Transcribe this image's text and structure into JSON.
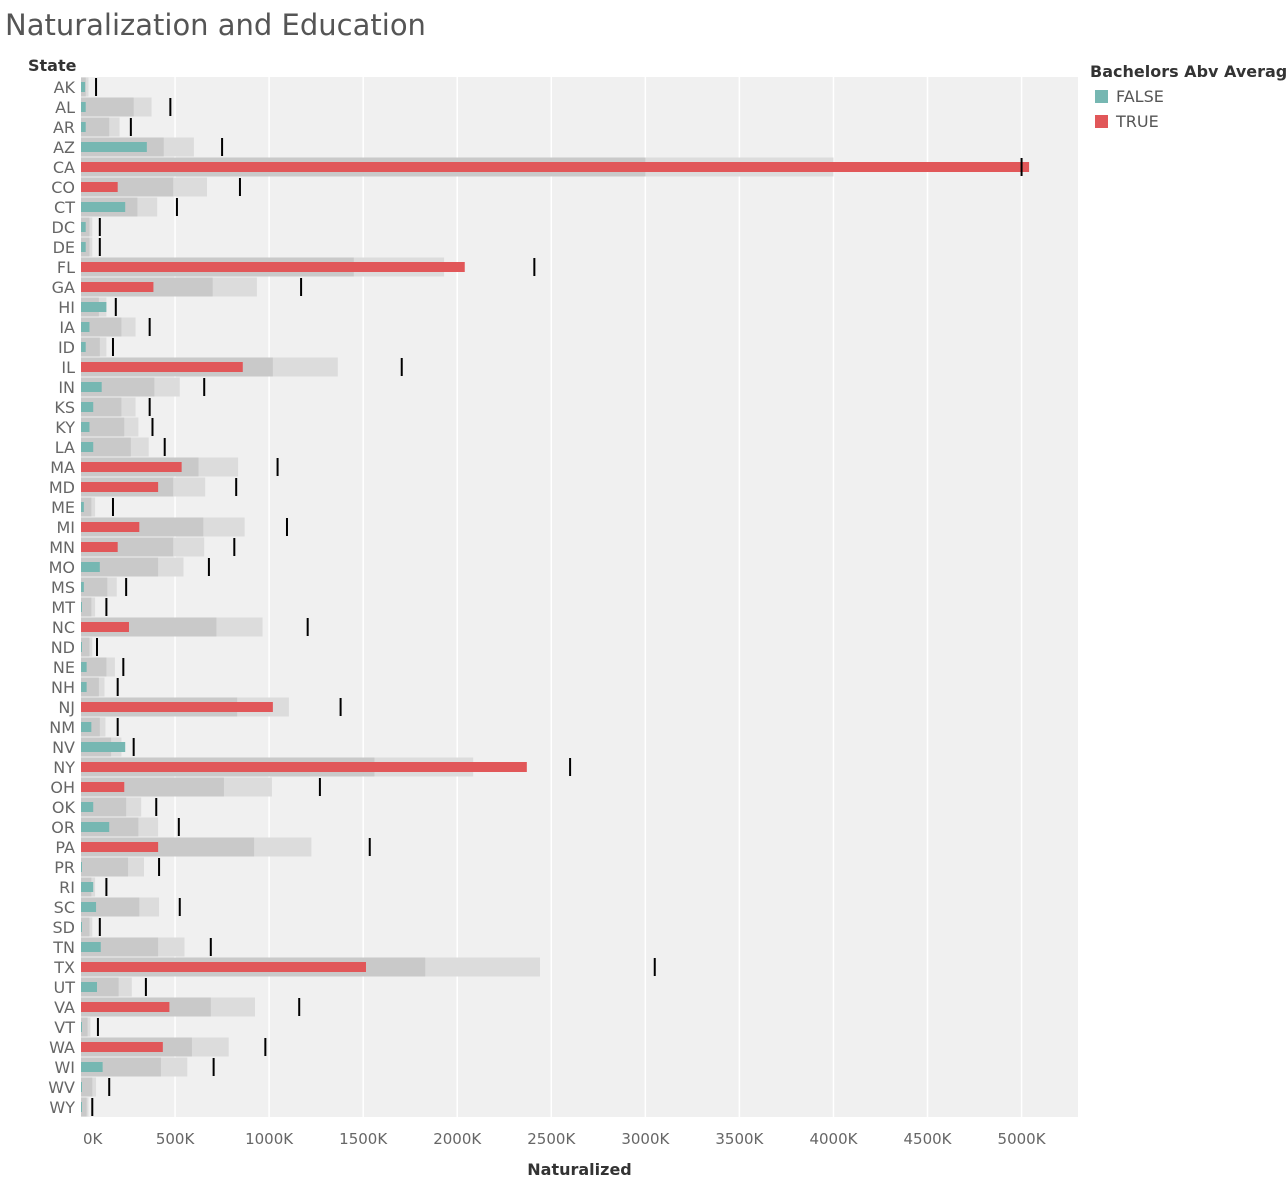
{
  "chart_data": {
    "type": "bar",
    "title": "Naturalization and Education",
    "row_header": "State",
    "xlabel": "Naturalized",
    "xlim": [
      0,
      5300000
    ],
    "x_ticks": [
      0,
      500000,
      1000000,
      1500000,
      2000000,
      2500000,
      3000000,
      3500000,
      4000000,
      4500000,
      5000000
    ],
    "x_tick_labels": [
      "0K",
      "500K",
      "1000K",
      "1500K",
      "2000K",
      "2500K",
      "3000K",
      "3500K",
      "4000K",
      "4500K",
      "5000K"
    ],
    "legend": {
      "title": "Bachelors Abv Average",
      "placement": "top-right",
      "entries": [
        {
          "label": "FALSE",
          "color": "#76b7b2"
        },
        {
          "label": "TRUE",
          "color": "#e15759"
        }
      ]
    },
    "colors": {
      "FALSE": "#76b7b2",
      "TRUE": "#e15759",
      "band_inner": "#c9c9c9",
      "band_outer": "#dcdcdc",
      "plot_bg": "#f0f0f0",
      "reference_line": "#000000"
    },
    "categories": [
      "AK",
      "AL",
      "AR",
      "AZ",
      "CA",
      "CO",
      "CT",
      "DC",
      "DE",
      "FL",
      "GA",
      "HI",
      "IA",
      "ID",
      "IL",
      "IN",
      "KS",
      "KY",
      "LA",
      "MA",
      "MD",
      "ME",
      "MI",
      "MN",
      "MO",
      "MS",
      "MT",
      "NC",
      "ND",
      "NE",
      "NH",
      "NJ",
      "NM",
      "NV",
      "NY",
      "OH",
      "OK",
      "OR",
      "PA",
      "PR",
      "RI",
      "SC",
      "SD",
      "TN",
      "TX",
      "UT",
      "VA",
      "VT",
      "WA",
      "WI",
      "WV",
      "WY"
    ],
    "series": [
      {
        "name": "Naturalized",
        "values": [
          22000,
          25000,
          25000,
          350000,
          5040000,
          195000,
          235000,
          25000,
          25000,
          2040000,
          385000,
          135000,
          45000,
          25000,
          860000,
          110000,
          65000,
          45000,
          65000,
          535000,
          410000,
          15000,
          310000,
          195000,
          100000,
          15000,
          5000,
          255000,
          5000,
          30000,
          30000,
          1020000,
          55000,
          235000,
          2370000,
          230000,
          65000,
          150000,
          410000,
          5000,
          65000,
          80000,
          5000,
          105000,
          1515000,
          85000,
          470000,
          5000,
          435000,
          115000,
          5000,
          5000
        ]
      },
      {
        "name": "Bachelors Abv Average",
        "values": [
          "FALSE",
          "FALSE",
          "FALSE",
          "FALSE",
          "TRUE",
          "TRUE",
          "FALSE",
          "FALSE",
          "FALSE",
          "TRUE",
          "TRUE",
          "FALSE",
          "FALSE",
          "FALSE",
          "TRUE",
          "FALSE",
          "FALSE",
          "FALSE",
          "FALSE",
          "TRUE",
          "TRUE",
          "FALSE",
          "TRUE",
          "TRUE",
          "FALSE",
          "FALSE",
          "FALSE",
          "TRUE",
          "FALSE",
          "FALSE",
          "FALSE",
          "TRUE",
          "FALSE",
          "FALSE",
          "TRUE",
          "TRUE",
          "FALSE",
          "FALSE",
          "TRUE",
          "FALSE",
          "FALSE",
          "FALSE",
          "FALSE",
          "FALSE",
          "TRUE",
          "FALSE",
          "TRUE",
          "FALSE",
          "TRUE",
          "FALSE",
          "FALSE",
          "FALSE"
        ]
      },
      {
        "name": "Band inner",
        "values": [
          25000,
          280000,
          150000,
          440000,
          3000000,
          490000,
          300000,
          45000,
          45000,
          1450000,
          700000,
          95000,
          215000,
          100000,
          1020000,
          390000,
          215000,
          230000,
          265000,
          625000,
          490000,
          55000,
          650000,
          490000,
          410000,
          140000,
          55000,
          720000,
          45000,
          135000,
          95000,
          830000,
          100000,
          160000,
          1560000,
          760000,
          240000,
          305000,
          920000,
          250000,
          55000,
          310000,
          45000,
          410000,
          1830000,
          200000,
          690000,
          35000,
          590000,
          425000,
          60000,
          30000
        ]
      },
      {
        "name": "Band outer",
        "values": [
          40000,
          375000,
          205000,
          600000,
          4000000,
          670000,
          405000,
          60000,
          60000,
          1930000,
          935000,
          135000,
          290000,
          135000,
          1365000,
          525000,
          290000,
          305000,
          360000,
          835000,
          660000,
          75000,
          870000,
          655000,
          545000,
          190000,
          75000,
          965000,
          60000,
          180000,
          125000,
          1105000,
          130000,
          215000,
          2085000,
          1015000,
          320000,
          410000,
          1225000,
          335000,
          75000,
          415000,
          60000,
          550000,
          2440000,
          270000,
          925000,
          50000,
          785000,
          565000,
          80000,
          40000
        ]
      },
      {
        "name": "Reference",
        "values": [
          80000,
          475000,
          265000,
          750000,
          5000000,
          845000,
          510000,
          100000,
          100000,
          2410000,
          1170000,
          185000,
          365000,
          170000,
          1705000,
          655000,
          365000,
          380000,
          445000,
          1045000,
          825000,
          170000,
          1095000,
          815000,
          680000,
          240000,
          135000,
          1205000,
          85000,
          225000,
          195000,
          1380000,
          195000,
          280000,
          2600000,
          1270000,
          400000,
          520000,
          1535000,
          415000,
          135000,
          525000,
          100000,
          690000,
          3050000,
          345000,
          1160000,
          90000,
          980000,
          705000,
          150000,
          60000
        ]
      }
    ]
  }
}
